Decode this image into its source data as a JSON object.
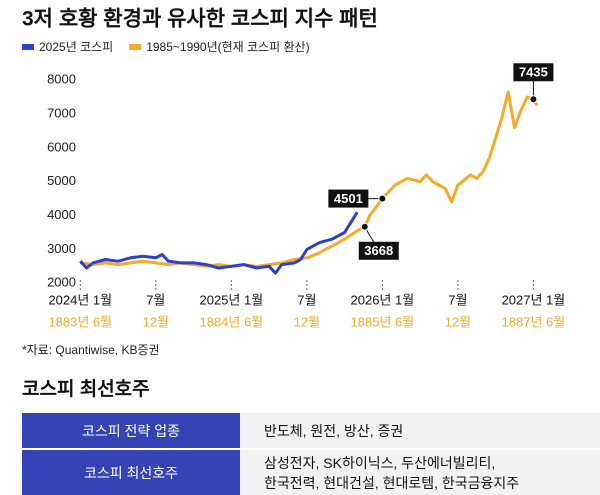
{
  "chart_data": {
    "type": "line",
    "title": "3저 호황 환경과 유사한 코스피 지수 패턴",
    "legend": "upper left",
    "series": [
      {
        "name": "2025년 코스피",
        "color": "#2b3fd1",
        "x": [
          0,
          0.5,
          1,
          2,
          3,
          4,
          5,
          6,
          6.5,
          7,
          8,
          9,
          10,
          11,
          12,
          13,
          14,
          15,
          15.5,
          16,
          17,
          17.5,
          18,
          19,
          20,
          21,
          21.5,
          22
        ],
        "values": [
          2650,
          2450,
          2600,
          2700,
          2650,
          2750,
          2800,
          2750,
          2850,
          2650,
          2600,
          2600,
          2550,
          2450,
          2500,
          2550,
          2450,
          2500,
          2300,
          2550,
          2600,
          2700,
          3000,
          3200,
          3300,
          3500,
          3800,
          4100
        ]
      },
      {
        "name": "1985~1990년(현재 코스피 환산)",
        "color": "#f7a928",
        "x": [
          0,
          1,
          2,
          3,
          4,
          5,
          6,
          7,
          8,
          9,
          10,
          11,
          12,
          13,
          14,
          15,
          16,
          17,
          18,
          19,
          20,
          21,
          22,
          22.6,
          23,
          24,
          25,
          26,
          27,
          27.5,
          28,
          29,
          29.5,
          30,
          31,
          31.5,
          32,
          32.5,
          33,
          33.5,
          34,
          34.5,
          35,
          35.5,
          36,
          36.3
        ],
        "values": [
          2600,
          2550,
          2600,
          2550,
          2600,
          2650,
          2600,
          2550,
          2600,
          2550,
          2500,
          2550,
          2500,
          2550,
          2500,
          2550,
          2600,
          2700,
          2750,
          2900,
          3100,
          3300,
          3550,
          3668,
          4000,
          4501,
          4900,
          5100,
          5000,
          5200,
          5000,
          4800,
          4400,
          4900,
          5200,
          5100,
          5300,
          5700,
          6300,
          6900,
          7650,
          6600,
          7100,
          7500,
          7435,
          7250
        ]
      }
    ],
    "annotations": [
      {
        "value": 4501,
        "x": 24
      },
      {
        "value": 3668,
        "x": 22.6
      },
      {
        "value": 7435,
        "x": 36
      }
    ],
    "xlim": [
      -0.5,
      37
    ],
    "xticks": [
      {
        "value": 0,
        "label": "2024년 1월"
      },
      {
        "value": 6,
        "label": "7월"
      },
      {
        "value": 12,
        "label": "2025년 1월"
      },
      {
        "value": 18,
        "label": "7월"
      },
      {
        "value": 24,
        "label": "2026년 1월"
      },
      {
        "value": 30,
        "label": "7월"
      },
      {
        "value": 36,
        "label": "2027년 1월"
      }
    ],
    "x2ticks": [
      {
        "value": 0,
        "label": "1883년 6월"
      },
      {
        "value": 6,
        "label": "12월"
      },
      {
        "value": 12,
        "label": "1884년 6월"
      },
      {
        "value": 18,
        "label": "12월"
      },
      {
        "value": 24,
        "label": "1885년 6월"
      },
      {
        "value": 30,
        "label": "12월"
      },
      {
        "value": 36,
        "label": "1887년 6월"
      }
    ],
    "ylim": [
      1800,
      8300
    ],
    "yticks": [
      2000,
      3000,
      4000,
      5000,
      6000,
      7000,
      8000
    ],
    "grid": false
  },
  "source": "*자료: Quantiwise, KB증권",
  "table": {
    "title": "코스피 최선호주",
    "rows": [
      [
        "코스피 전략 업종",
        "반도체, 원전, 방산, 증권"
      ],
      [
        "코스피 최선호주",
        [
          "삼성전자, SK하이닉스, 두산에너빌리티,",
          "한국전력, 현대건설, 현대로템, 한국금융지주"
        ]
      ]
    ]
  }
}
